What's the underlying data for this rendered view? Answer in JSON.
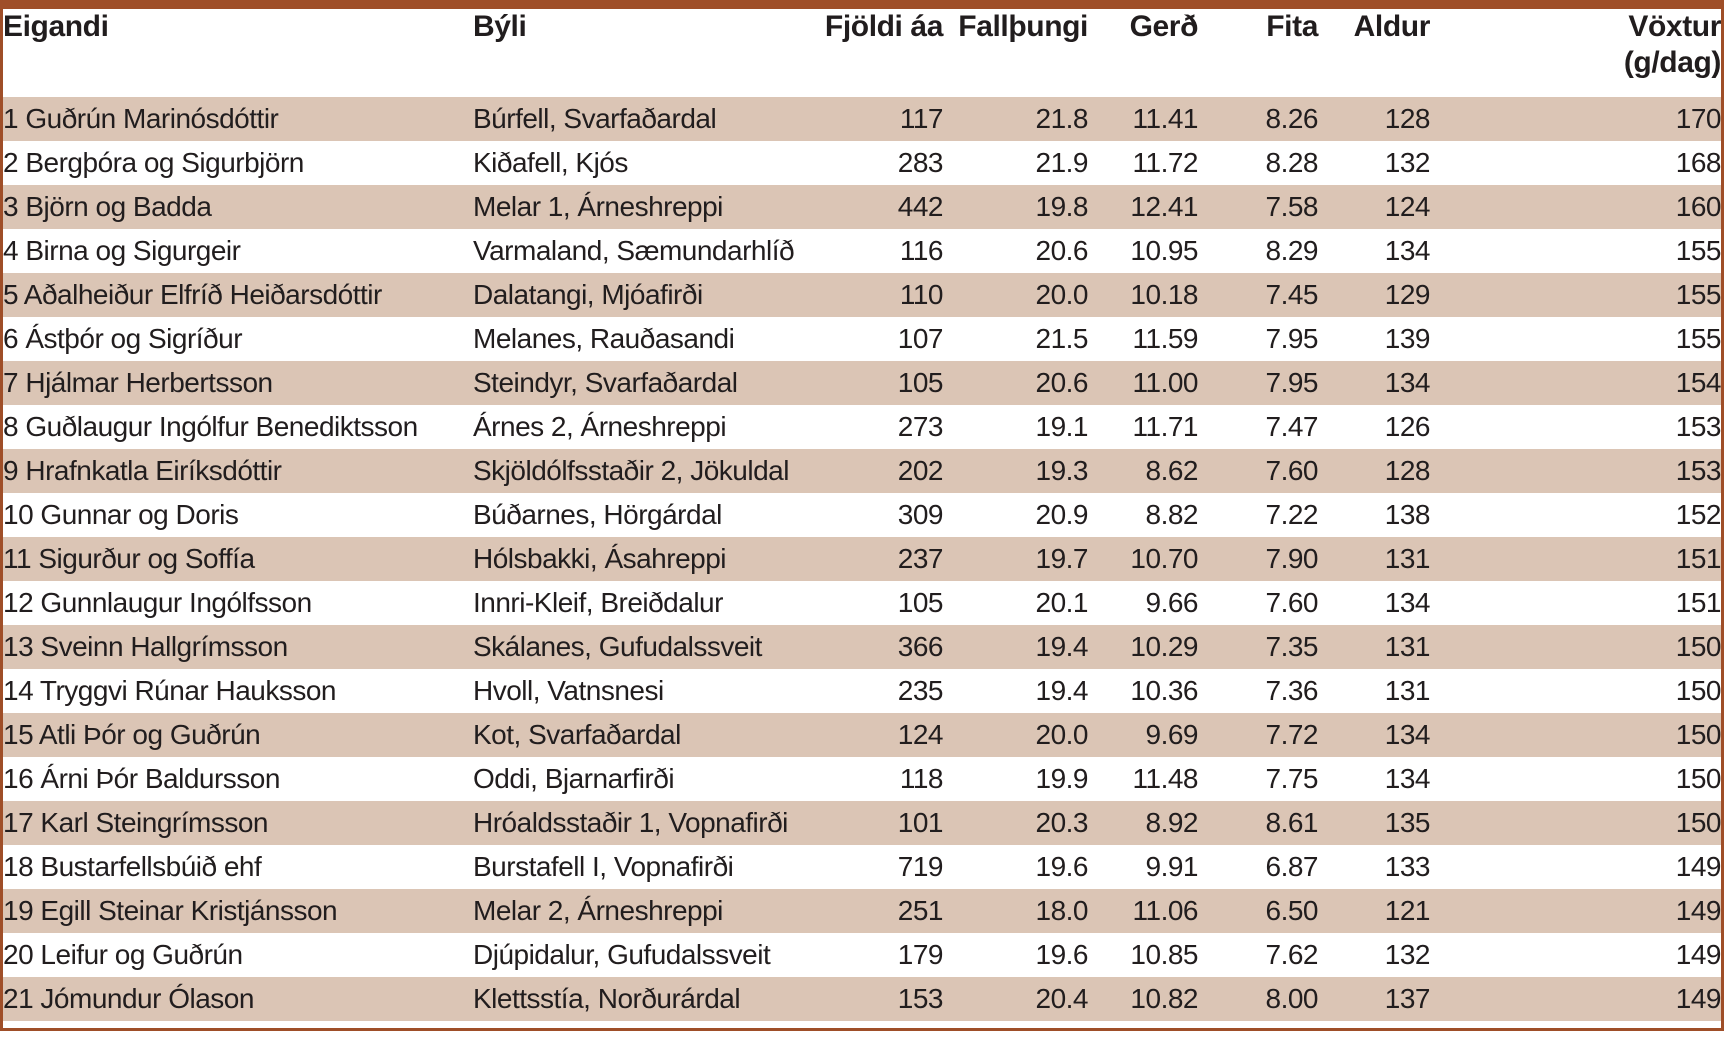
{
  "colors": {
    "frame_border": "#9f4e28",
    "row_stripe": "#dbc5b5",
    "text": "#211d1e",
    "background": "#ffffff"
  },
  "table": {
    "columns": [
      {
        "label": "Eigandi",
        "sub": "",
        "align": "left"
      },
      {
        "label": "Býli",
        "sub": "",
        "align": "left"
      },
      {
        "label": "Fjöldi áa",
        "sub": "",
        "align": "right"
      },
      {
        "label": "Fallþungi",
        "sub": "",
        "align": "right"
      },
      {
        "label": "Gerð",
        "sub": "",
        "align": "right"
      },
      {
        "label": "Fita",
        "sub": "",
        "align": "right"
      },
      {
        "label": "Aldur",
        "sub": "",
        "align": "right"
      },
      {
        "label": "Vöxtur",
        "sub": "(g/dag)",
        "align": "right"
      }
    ],
    "rows": [
      [
        "1 Guðrún Marinósdóttir",
        "Búrfell, Svarfaðardal",
        "117",
        "21.8",
        "11.41",
        "8.26",
        "128",
        "170"
      ],
      [
        "2 Bergþóra og Sigurbjörn",
        "Kiðafell, Kjós",
        "283",
        "21.9",
        "11.72",
        "8.28",
        "132",
        "168"
      ],
      [
        "3 Björn og Badda",
        "Melar 1, Árneshreppi",
        "442",
        "19.8",
        "12.41",
        "7.58",
        "124",
        "160"
      ],
      [
        "4 Birna og Sigurgeir",
        "Varmaland, Sæmundarhlíð",
        "116",
        "20.6",
        "10.95",
        "8.29",
        "134",
        "155"
      ],
      [
        "5 Aðalheiður Elfríð Heiðarsdóttir",
        "Dalatangi, Mjóafirði",
        "110",
        "20.0",
        "10.18",
        "7.45",
        "129",
        "155"
      ],
      [
        "6 Ástþór og Sigríður",
        "Melanes, Rauðasandi",
        "107",
        "21.5",
        "11.59",
        "7.95",
        "139",
        "155"
      ],
      [
        "7 Hjálmar Herbertsson",
        "Steindyr, Svarfaðardal",
        "105",
        "20.6",
        "11.00",
        "7.95",
        "134",
        "154"
      ],
      [
        "8 Guðlaugur Ingólfur Benediktsson",
        "Árnes 2, Árneshreppi",
        "273",
        "19.1",
        "11.71",
        "7.47",
        "126",
        "153"
      ],
      [
        "9 Hrafnkatla Eiríksdóttir",
        "Skjöldólfsstaðir 2, Jökuldal",
        "202",
        "19.3",
        "8.62",
        "7.60",
        "128",
        "153"
      ],
      [
        "10 Gunnar og Doris",
        "Búðarnes, Hörgárdal",
        "309",
        "20.9",
        "8.82",
        "7.22",
        "138",
        "152"
      ],
      [
        "11 Sigurður og Soffía",
        "Hólsbakki, Ásahreppi",
        "237",
        "19.7",
        "10.70",
        "7.90",
        "131",
        "151"
      ],
      [
        "12 Gunnlaugur Ingólfsson",
        "Innri-Kleif, Breiðdalur",
        "105",
        "20.1",
        "9.66",
        "7.60",
        "134",
        "151"
      ],
      [
        "13 Sveinn Hallgrímsson",
        "Skálanes, Gufudalssveit",
        "366",
        "19.4",
        "10.29",
        "7.35",
        "131",
        "150"
      ],
      [
        "14 Tryggvi Rúnar Hauksson",
        "Hvoll, Vatnsnesi",
        "235",
        "19.4",
        "10.36",
        "7.36",
        "131",
        "150"
      ],
      [
        "15 Atli Þór og Guðrún",
        "Kot, Svarfaðardal",
        "124",
        "20.0",
        "9.69",
        "7.72",
        "134",
        "150"
      ],
      [
        "16 Árni Þór Baldursson",
        "Oddi, Bjarnarfirði",
        "118",
        "19.9",
        "11.48",
        "7.75",
        "134",
        "150"
      ],
      [
        "17 Karl Steingrímsson",
        "Hróaldsstaðir 1, Vopnafirði",
        "101",
        "20.3",
        "8.92",
        "8.61",
        "135",
        "150"
      ],
      [
        "18 Bustarfellsbúið ehf",
        "Burstafell I, Vopnafirði",
        "719",
        "19.6",
        "9.91",
        "6.87",
        "133",
        "149"
      ],
      [
        "19 Egill Steinar Kristjánsson",
        "Melar 2, Árneshreppi",
        "251",
        "18.0",
        "11.06",
        "6.50",
        "121",
        "149"
      ],
      [
        "20 Leifur og Guðrún",
        "Djúpidalur, Gufudalssveit",
        "179",
        "19.6",
        "10.85",
        "7.62",
        "132",
        "149"
      ],
      [
        "21 Jómundur Ólason",
        "Klettsstía, Norðurárdal",
        "153",
        "20.4",
        "10.82",
        "8.00",
        "137",
        "149"
      ]
    ]
  }
}
